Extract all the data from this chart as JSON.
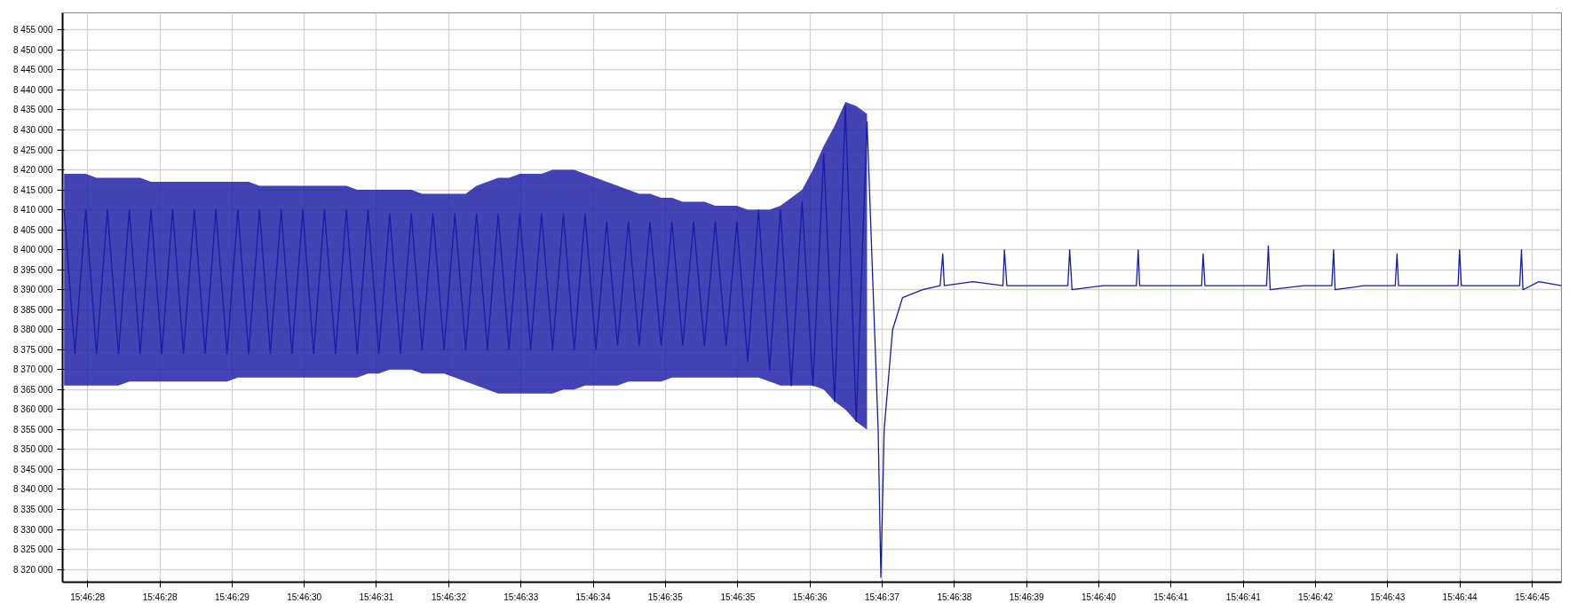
{
  "chart_data": {
    "type": "line",
    "grid": true,
    "marker": "none",
    "line_style": "solid",
    "xlim": [
      15.77425,
      15.779236
    ],
    "ylim": [
      8316800,
      8459300
    ],
    "xticks": [
      {
        "value": 15.774333,
        "label": "15:46:28"
      },
      {
        "value": 15.774574,
        "label": "15:46:28"
      },
      {
        "value": 15.774814,
        "label": "15:46:29"
      },
      {
        "value": 15.775054,
        "label": "15:46:30"
      },
      {
        "value": 15.775294,
        "label": "15:46:31"
      },
      {
        "value": 15.775535,
        "label": "15:46:32"
      },
      {
        "value": 15.775775,
        "label": "15:46:33"
      },
      {
        "value": 15.776015,
        "label": "15:46:34"
      },
      {
        "value": 15.776255,
        "label": "15:46:35"
      },
      {
        "value": 15.776496,
        "label": "15:46:35"
      },
      {
        "value": 15.776736,
        "label": "15:46:36"
      },
      {
        "value": 15.776976,
        "label": "15:46:37"
      },
      {
        "value": 15.777217,
        "label": "15:46:38"
      },
      {
        "value": 15.777457,
        "label": "15:46:39"
      },
      {
        "value": 15.777697,
        "label": "15:46:40"
      },
      {
        "value": 15.777937,
        "label": "15:46:41"
      },
      {
        "value": 15.778178,
        "label": "15:46:41"
      },
      {
        "value": 15.778418,
        "label": "15:46:42"
      },
      {
        "value": 15.778658,
        "label": "15:46:43"
      },
      {
        "value": 15.778898,
        "label": "15:46:44"
      },
      {
        "value": 15.779139,
        "label": "15:46:45"
      }
    ],
    "yticks": [
      {
        "value": 8320000,
        "label": "8 320 000"
      },
      {
        "value": 8325000,
        "label": "8 325 000"
      },
      {
        "value": 8330000,
        "label": "8 330 000"
      },
      {
        "value": 8335000,
        "label": "8 335 000"
      },
      {
        "value": 8340000,
        "label": "8 340 000"
      },
      {
        "value": 8345000,
        "label": "8 345 000"
      },
      {
        "value": 8350000,
        "label": "8 350 000"
      },
      {
        "value": 8355000,
        "label": "8 355 000"
      },
      {
        "value": 8360000,
        "label": "8 360 000"
      },
      {
        "value": 8365000,
        "label": "8 365 000"
      },
      {
        "value": 8370000,
        "label": "8 370 000"
      },
      {
        "value": 8375000,
        "label": "8 375 000"
      },
      {
        "value": 8380000,
        "label": "8 380 000"
      },
      {
        "value": 8385000,
        "label": "8 385 000"
      },
      {
        "value": 8390000,
        "label": "8 390 000"
      },
      {
        "value": 8395000,
        "label": "8 395 000"
      },
      {
        "value": 8400000,
        "label": "8 400 000"
      },
      {
        "value": 8405000,
        "label": "8 405 000"
      },
      {
        "value": 8410000,
        "label": "8 410 000"
      },
      {
        "value": 8415000,
        "label": "8 415 000"
      },
      {
        "value": 8420000,
        "label": "8 420 000"
      },
      {
        "value": 8425000,
        "label": "8 425 000"
      },
      {
        "value": 8430000,
        "label": "8 430 000"
      },
      {
        "value": 8435000,
        "label": "8 435 000"
      },
      {
        "value": 8440000,
        "label": "8 440 000"
      },
      {
        "value": 8445000,
        "label": "8 445 000"
      },
      {
        "value": 8450000,
        "label": "8 450 000"
      },
      {
        "value": 8455000,
        "label": "8 455 000"
      }
    ],
    "series": [
      {
        "color": "#1a1aa6",
        "x": [
          15.774255,
          15.774291,
          15.774327,
          15.774363,
          15.774399,
          15.774436,
          15.774472,
          15.774508,
          15.774544,
          15.77458,
          15.774616,
          15.774652,
          15.774688,
          15.774724,
          15.77476,
          15.774797,
          15.774833,
          15.774869,
          15.774905,
          15.774941,
          15.774977,
          15.775013,
          15.775049,
          15.775085,
          15.775121,
          15.775158,
          15.775194,
          15.77523,
          15.775266,
          15.775302,
          15.775338,
          15.775374,
          15.77541,
          15.775446,
          15.775482,
          15.775519,
          15.775555,
          15.775591,
          15.775627,
          15.775663,
          15.775699,
          15.775735,
          15.775771,
          15.775807,
          15.775843,
          15.77588,
          15.775916,
          15.775952,
          15.775988,
          15.776024,
          15.77606,
          15.776096,
          15.776132,
          15.776168,
          15.776204,
          15.776241,
          15.776277,
          15.776313,
          15.776349,
          15.776385,
          15.776421,
          15.776457,
          15.776493,
          15.776529,
          15.776565,
          15.776602,
          15.776638,
          15.776674,
          15.77671,
          15.776746,
          15.776782,
          15.776818,
          15.776854,
          15.77689,
          15.776926,
          15.776963,
          15.776972,
          15.776983,
          15.777011,
          15.777044,
          15.777111,
          15.777169,
          15.777178,
          15.777183,
          15.777278,
          15.777378,
          15.777383,
          15.777391,
          15.777511,
          15.777594,
          15.7776,
          15.777608,
          15.777711,
          15.777822,
          15.777828,
          15.777833,
          15.777944,
          15.778039,
          15.778044,
          15.77805,
          15.778161,
          15.778255,
          15.778261,
          15.778267,
          15.778378,
          15.778472,
          15.778478,
          15.778483,
          15.778578,
          15.778683,
          15.778689,
          15.778694,
          15.778794,
          15.778892,
          15.778897,
          15.778903,
          15.779011,
          15.779097,
          15.779103,
          15.779108,
          15.779161,
          15.779236
        ],
        "values": [
          8410000,
          8374000,
          8410000,
          8374000,
          8410000,
          8374000,
          8410000,
          8374000,
          8410000,
          8374000,
          8410000,
          8374000,
          8410000,
          8374000,
          8410000,
          8374000,
          8410000,
          8374000,
          8410000,
          8374000,
          8410000,
          8374000,
          8410000,
          8374000,
          8410000,
          8374000,
          8410000,
          8374000,
          8410000,
          8374000,
          8409000,
          8374000,
          8409000,
          8375000,
          8409000,
          8375000,
          8409000,
          8375000,
          8409000,
          8375000,
          8409000,
          8375000,
          8409000,
          8375000,
          8409000,
          8375000,
          8409000,
          8375000,
          8409000,
          8375000,
          8407000,
          8376000,
          8407000,
          8376000,
          8407000,
          8376000,
          8407000,
          8376000,
          8407000,
          8376000,
          8407000,
          8376000,
          8407000,
          8372000,
          8410000,
          8370000,
          8410000,
          8366000,
          8412000,
          8366000,
          8424000,
          8362000,
          8436000,
          8357000,
          8432000,
          8355000,
          8318000,
          8355000,
          8380000,
          8388000,
          8390000,
          8391000,
          8399000,
          8391000,
          8392000,
          8391000,
          8400000,
          8391000,
          8391000,
          8391000,
          8400000,
          8390000,
          8391000,
          8391000,
          8400000,
          8391000,
          8391000,
          8391000,
          8399000,
          8391000,
          8391000,
          8391000,
          8401000,
          8390000,
          8391000,
          8391000,
          8400000,
          8390000,
          8391000,
          8391000,
          8399000,
          8391000,
          8391000,
          8391000,
          8400000,
          8391000,
          8391000,
          8391000,
          8400000,
          8390000,
          8392000,
          8391000
        ],
        "upper": [
          8419000,
          8419000,
          8419000,
          8418000,
          8418000,
          8418000,
          8418000,
          8418000,
          8417000,
          8417000,
          8417000,
          8417000,
          8417000,
          8417000,
          8417000,
          8417000,
          8417000,
          8417000,
          8416000,
          8416000,
          8416000,
          8416000,
          8416000,
          8416000,
          8416000,
          8416000,
          8416000,
          8415000,
          8415000,
          8415000,
          8415000,
          8415000,
          8415000,
          8414000,
          8414000,
          8414000,
          8414000,
          8414000,
          8416000,
          8417000,
          8418000,
          8418000,
          8419000,
          8419000,
          8419000,
          8420000,
          8420000,
          8420000,
          8419000,
          8418000,
          8417000,
          8416000,
          8415000,
          8414000,
          8414000,
          8413000,
          8413000,
          8412000,
          8412000,
          8412000,
          8411000,
          8411000,
          8411000,
          8410000,
          8410000,
          8410000,
          8411000,
          8413000,
          8415000,
          8420000,
          8426000,
          8431000,
          8437000,
          8436000,
          8434000,
          null,
          null,
          null,
          null,
          null,
          null,
          null,
          null,
          null,
          null,
          null,
          null,
          null,
          null,
          null,
          null,
          null,
          null,
          null,
          null,
          null,
          null,
          null,
          null,
          null,
          null,
          null,
          null,
          null,
          null,
          null,
          null,
          null,
          null,
          null,
          null,
          null,
          null,
          null,
          null,
          null,
          null,
          null,
          null,
          null,
          null,
          null
        ],
        "lower": [
          8366000,
          8366000,
          8366000,
          8366000,
          8366000,
          8366000,
          8367000,
          8367000,
          8367000,
          8367000,
          8367000,
          8367000,
          8367000,
          8367000,
          8367000,
          8367000,
          8368000,
          8368000,
          8368000,
          8368000,
          8368000,
          8368000,
          8368000,
          8368000,
          8368000,
          8368000,
          8368000,
          8368000,
          8369000,
          8369000,
          8370000,
          8370000,
          8370000,
          8369000,
          8369000,
          8369000,
          8368000,
          8367000,
          8366000,
          8365000,
          8364000,
          8364000,
          8364000,
          8364000,
          8364000,
          8364000,
          8365000,
          8365000,
          8366000,
          8366000,
          8366000,
          8366000,
          8367000,
          8367000,
          8367000,
          8367000,
          8368000,
          8368000,
          8368000,
          8368000,
          8368000,
          8368000,
          8368000,
          8368000,
          8368000,
          8367000,
          8366000,
          8366000,
          8366000,
          8366000,
          8365000,
          8362000,
          8360000,
          8357000,
          8355000,
          null,
          null,
          null,
          null,
          null,
          null,
          null,
          null,
          null,
          null,
          null,
          null,
          null,
          null,
          null,
          null,
          null,
          null,
          null,
          null,
          null,
          null,
          null,
          null,
          null,
          null,
          null,
          null,
          null,
          null,
          null,
          null,
          null,
          null,
          null,
          null,
          null,
          null,
          null,
          null,
          null,
          null,
          null,
          null,
          null,
          null,
          null
        ]
      }
    ]
  }
}
